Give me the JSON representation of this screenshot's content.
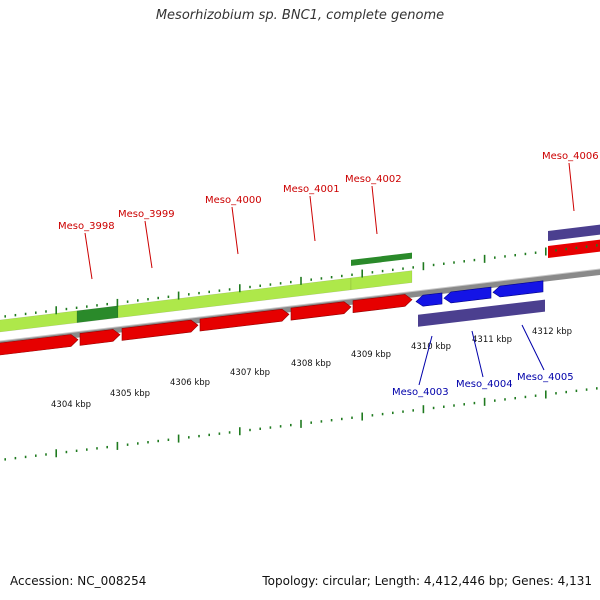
{
  "title": "Mesorhizobium sp. BNC1, complete genome",
  "footer": {
    "accession": "Accession: NC_008254",
    "topology": "Topology: circular; Length: 4,412,446 bp; Genes: 4,131"
  },
  "colors": {
    "forward_gene": "#e60000",
    "forward_cds": "#aee84a",
    "forward_cds_alt": "#2a8a2a",
    "reverse_gene": "#1414e6",
    "reverse_cds": "#4b3f8f",
    "forward_label": "#cc0000",
    "reverse_label": "#0000aa",
    "backbone": "#8a8a8a",
    "tick": "#1f7a1f"
  },
  "ruler": {
    "unit": "kbp",
    "labels": [
      "4304 kbp",
      "4305 kbp",
      "4306 kbp",
      "4307 kbp",
      "4308 kbp",
      "4309 kbp",
      "4310 kbp",
      "4311 kbp",
      "4312 kbp"
    ]
  },
  "forward_genes": [
    "Meso_3998",
    "Meso_3999",
    "Meso_4000",
    "Meso_4001",
    "Meso_4002",
    "Meso_4006"
  ],
  "reverse_genes": [
    "Meso_4003",
    "Meso_4004",
    "Meso_4005"
  ]
}
